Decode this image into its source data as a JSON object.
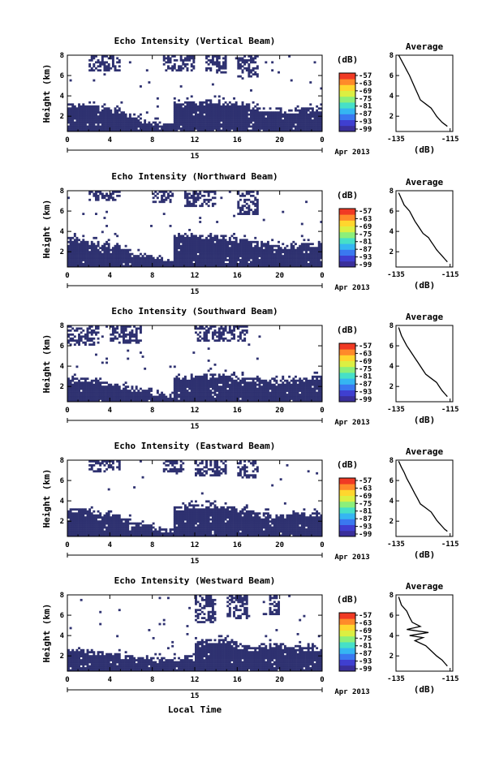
{
  "common": {
    "y_label": "Height (km)",
    "y_ticks": [
      "2",
      "4",
      "6",
      "8"
    ],
    "x_ticks": [
      "0",
      "4",
      "8",
      "12",
      "16",
      "20",
      "0"
    ],
    "date_day": "15",
    "date_month": "Apr 2013",
    "x_axis_label": "Local Time",
    "colorbar_unit": "(dB)",
    "colorbar_ticks": [
      "-57",
      "-63",
      "-69",
      "-75",
      "-81",
      "-87",
      "-93",
      "-99"
    ],
    "colorbar_colors": [
      "#3a2f9a",
      "#3f3fd0",
      "#3a78f0",
      "#35b6f2",
      "#46e0c8",
      "#8cef7a",
      "#dcef42",
      "#ffd62e",
      "#ff8a2a",
      "#f03a24"
    ],
    "fill_color": "#2e3170",
    "avg_title": "Average",
    "avg_x_ticks": [
      "-135",
      "-115"
    ],
    "avg_x_label": "(dB)"
  },
  "chart_data": [
    {
      "type": "heatmap",
      "title": "Echo Intensity (Vertical Beam)",
      "xlim": [
        0,
        24
      ],
      "ylim": [
        0.5,
        8
      ],
      "low_layer_top_km": [
        3.2,
        3.2,
        3.0,
        2.8,
        2.6,
        2.2,
        1.9,
        1.6,
        1.4,
        1.3,
        3.4,
        3.5,
        3.5,
        3.6,
        3.5,
        3.4,
        3.3,
        3.1,
        2.9,
        2.8,
        2.7,
        2.7,
        2.8,
        2.9,
        2.9
      ],
      "upper_cloud_km": [
        [
          2,
          5,
          6.5,
          8
        ],
        [
          9,
          12,
          6.5,
          8
        ],
        [
          13,
          15,
          6.2,
          8
        ],
        [
          16,
          18,
          5.8,
          8
        ]
      ],
      "avg_profile": {
        "x": [
          -116,
          -117,
          -118,
          -119,
          -120,
          -121,
          -122,
          -124,
          -126,
          -127,
          -128,
          -129,
          -130,
          -131,
          -132,
          -133,
          -134
        ],
        "y": [
          1.0,
          1.2,
          1.4,
          1.7,
          2.0,
          2.4,
          2.8,
          3.2,
          3.6,
          4.2,
          4.8,
          5.4,
          6.0,
          6.5,
          7.0,
          7.5,
          8.0
        ]
      }
    },
    {
      "type": "heatmap",
      "title": "Echo Intensity (Northward Beam)",
      "xlim": [
        0,
        24
      ],
      "ylim": [
        0.5,
        8
      ],
      "low_layer_top_km": [
        3.5,
        3.3,
        3.1,
        2.9,
        2.6,
        2.2,
        1.9,
        1.6,
        1.4,
        1.3,
        3.6,
        3.8,
        3.7,
        3.7,
        3.6,
        3.5,
        3.3,
        3.1,
        2.9,
        2.7,
        2.7,
        2.8,
        2.8,
        2.8,
        2.8
      ],
      "upper_cloud_km": [
        [
          2,
          5,
          7.0,
          8
        ],
        [
          8,
          10,
          6.8,
          8
        ],
        [
          11,
          14,
          6.5,
          8
        ],
        [
          16,
          18,
          5.6,
          8
        ]
      ],
      "avg_profile": {
        "x": [
          -116,
          -117,
          -118,
          -119,
          -120,
          -121,
          -122,
          -123,
          -125,
          -126,
          -127,
          -128,
          -129,
          -130,
          -132,
          -133,
          -134
        ],
        "y": [
          1.0,
          1.3,
          1.6,
          1.9,
          2.2,
          2.6,
          3.0,
          3.4,
          3.8,
          4.2,
          4.6,
          5.0,
          5.5,
          6.0,
          6.6,
          7.2,
          7.8
        ]
      }
    },
    {
      "type": "heatmap",
      "title": "Echo Intensity (Southward Beam)",
      "xlim": [
        0,
        24
      ],
      "ylim": [
        0.5,
        8
      ],
      "low_layer_top_km": [
        2.8,
        2.8,
        2.6,
        2.4,
        2.2,
        2.0,
        1.8,
        1.6,
        1.4,
        1.3,
        2.8,
        3.0,
        3.1,
        3.2,
        3.2,
        3.1,
        2.9,
        2.8,
        2.7,
        2.6,
        2.6,
        2.7,
        2.9,
        3.0,
        3.0
      ],
      "upper_cloud_km": [
        [
          0,
          3,
          6.0,
          8
        ],
        [
          4,
          7,
          6.2,
          8
        ],
        [
          12,
          17,
          6.4,
          8
        ]
      ],
      "avg_profile": {
        "x": [
          -116,
          -117,
          -118,
          -119,
          -120,
          -122,
          -124,
          -125,
          -126,
          -127,
          -128,
          -129,
          -130,
          -131,
          -132,
          -133,
          -134
        ],
        "y": [
          1.0,
          1.3,
          1.6,
          2.0,
          2.4,
          2.8,
          3.2,
          3.6,
          4.0,
          4.4,
          4.8,
          5.2,
          5.6,
          6.0,
          6.5,
          7.0,
          7.8
        ]
      }
    },
    {
      "type": "heatmap",
      "title": "Echo Intensity (Eastward Beam)",
      "xlim": [
        0,
        24
      ],
      "ylim": [
        0.5,
        8
      ],
      "low_layer_top_km": [
        3.2,
        3.2,
        3.0,
        2.8,
        2.6,
        2.2,
        1.9,
        1.6,
        1.4,
        1.3,
        3.4,
        3.6,
        3.6,
        3.6,
        3.5,
        3.4,
        3.2,
        3.0,
        2.8,
        2.7,
        2.7,
        2.8,
        2.9,
        2.9,
        2.9
      ],
      "upper_cloud_km": [
        [
          2,
          5,
          6.8,
          8
        ],
        [
          9,
          11,
          6.8,
          8
        ],
        [
          12,
          15,
          6.4,
          8
        ],
        [
          16,
          18,
          6.2,
          8
        ]
      ],
      "avg_profile": {
        "x": [
          -116,
          -117,
          -118,
          -119,
          -120,
          -121,
          -122,
          -124,
          -126,
          -127,
          -128,
          -129,
          -130,
          -131,
          -132,
          -133,
          -134
        ],
        "y": [
          1.0,
          1.2,
          1.5,
          1.8,
          2.1,
          2.5,
          2.9,
          3.3,
          3.7,
          4.2,
          4.7,
          5.2,
          5.7,
          6.2,
          6.8,
          7.3,
          7.9
        ]
      }
    },
    {
      "type": "heatmap",
      "title": "Echo Intensity (Westward Beam)",
      "xlim": [
        0,
        24
      ],
      "ylim": [
        0.5,
        8
      ],
      "low_layer_top_km": [
        2.6,
        2.6,
        2.4,
        2.3,
        2.2,
        2.0,
        1.9,
        1.8,
        1.8,
        1.8,
        1.9,
        2.0,
        3.4,
        3.6,
        3.6,
        3.4,
        3.0,
        2.8,
        3.0,
        3.2,
        3.2,
        3.0,
        2.8,
        2.8,
        2.8
      ],
      "upper_cloud_km": [
        [
          12,
          14,
          5.2,
          8
        ],
        [
          15,
          17,
          5.6,
          8
        ],
        [
          19,
          20,
          6.0,
          8
        ]
      ],
      "avg_profile": {
        "x": [
          -116,
          -117,
          -118,
          -120,
          -122,
          -124,
          -128,
          -125,
          -130,
          -123,
          -131,
          -126,
          -129,
          -130,
          -131,
          -133,
          -134
        ],
        "y": [
          1.0,
          1.3,
          1.6,
          2.0,
          2.5,
          3.0,
          3.5,
          3.8,
          4.0,
          4.3,
          4.6,
          4.9,
          5.3,
          5.8,
          6.4,
          7.0,
          7.8
        ]
      }
    }
  ]
}
